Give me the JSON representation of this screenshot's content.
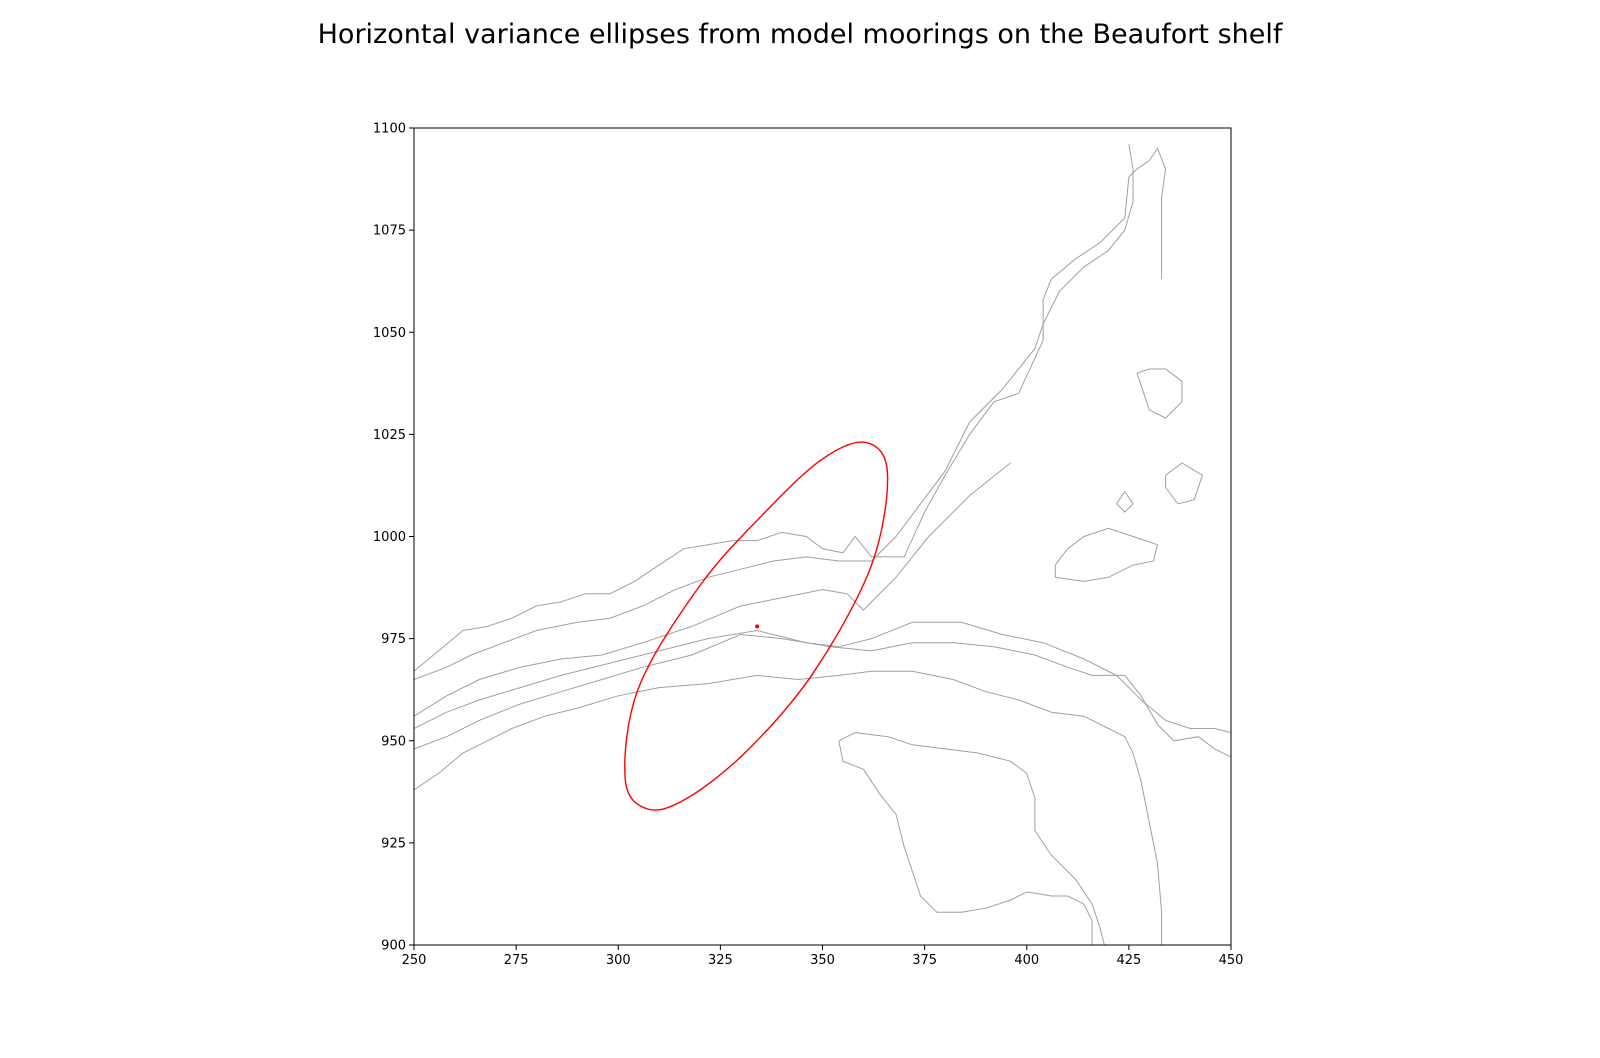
{
  "chart_data": {
    "type": "scatter",
    "title": "Horizontal variance ellipses from model moorings on the Beaufort shelf",
    "xlabel": "",
    "ylabel": "",
    "xlim": [
      250,
      450
    ],
    "ylim": [
      900,
      1100
    ],
    "xticks": [
      250,
      275,
      300,
      325,
      350,
      375,
      400,
      425,
      450
    ],
    "yticks": [
      900,
      925,
      950,
      975,
      1000,
      1025,
      1050,
      1075,
      1100
    ],
    "grid": false,
    "legend": "none",
    "colors": {
      "ellipse": "#ff0000",
      "contour": "#a0a0a0",
      "axis": "#000000"
    },
    "mooring": {
      "x": 334,
      "y": 978
    },
    "variance_ellipse": {
      "center": [
        334,
        978
      ],
      "vertices_data": [
        [
          307.2,
          933.3
        ],
        [
          301.7,
          940.7
        ],
        [
          305.0,
          963.0
        ],
        [
          320.0,
          988.0
        ],
        [
          336.0,
          1006.0
        ],
        [
          350.0,
          1019.0
        ],
        [
          360.7,
          1023.0
        ],
        [
          365.9,
          1015.4
        ],
        [
          362.0,
          993.0
        ],
        [
          348.0,
          967.0
        ],
        [
          332.0,
          948.0
        ],
        [
          317.0,
          936.0
        ]
      ]
    },
    "bathymetry_contours": [
      [
        [
          250,
          967
        ],
        [
          256,
          972
        ],
        [
          262,
          977
        ],
        [
          268,
          978
        ],
        [
          274,
          980
        ],
        [
          280,
          983
        ],
        [
          286,
          984
        ],
        [
          292,
          986
        ],
        [
          298,
          986
        ],
        [
          304,
          989
        ],
        [
          310,
          993
        ],
        [
          316,
          997
        ],
        [
          322,
          998
        ],
        [
          328,
          999
        ],
        [
          334,
          999
        ],
        [
          340,
          1001
        ],
        [
          346,
          1000
        ],
        [
          350,
          997
        ],
        [
          355,
          996
        ],
        [
          358,
          1000
        ],
        [
          362,
          995
        ],
        [
          370,
          995
        ],
        [
          375,
          1006
        ],
        [
          380,
          1015
        ],
        [
          386,
          1025
        ],
        [
          392,
          1033
        ],
        [
          398,
          1035
        ],
        [
          404,
          1048
        ],
        [
          404,
          1058
        ],
        [
          406,
          1063
        ],
        [
          412,
          1068
        ],
        [
          418,
          1072
        ],
        [
          424,
          1078
        ],
        [
          425,
          1088
        ],
        [
          427,
          1090
        ],
        [
          430,
          1092
        ],
        [
          432,
          1095
        ],
        [
          434,
          1090
        ],
        [
          433,
          1083
        ],
        [
          433,
          1072
        ],
        [
          433,
          1063
        ]
      ],
      [
        [
          250,
          965
        ],
        [
          258,
          968
        ],
        [
          264,
          971
        ],
        [
          272,
          974
        ],
        [
          280,
          977
        ],
        [
          290,
          979
        ],
        [
          298,
          980
        ],
        [
          306,
          983
        ],
        [
          314,
          987
        ],
        [
          322,
          990
        ],
        [
          330,
          992
        ],
        [
          338,
          994
        ],
        [
          346,
          995
        ],
        [
          354,
          994
        ],
        [
          362,
          994
        ],
        [
          368,
          1000
        ],
        [
          374,
          1008
        ],
        [
          380,
          1016
        ],
        [
          386,
          1028
        ],
        [
          394,
          1036
        ],
        [
          402,
          1046
        ],
        [
          404,
          1052
        ],
        [
          408,
          1060
        ],
        [
          414,
          1066
        ],
        [
          420,
          1070
        ],
        [
          424,
          1075
        ],
        [
          426,
          1082
        ],
        [
          426,
          1090
        ],
        [
          425,
          1096
        ]
      ],
      [
        [
          250,
          956
        ],
        [
          258,
          961
        ],
        [
          266,
          965
        ],
        [
          276,
          968
        ],
        [
          286,
          970
        ],
        [
          296,
          971
        ],
        [
          306,
          974
        ],
        [
          318,
          978
        ],
        [
          330,
          983
        ],
        [
          340,
          985
        ],
        [
          350,
          987
        ],
        [
          356,
          986
        ],
        [
          360,
          982
        ],
        [
          368,
          990
        ],
        [
          376,
          1000
        ],
        [
          386,
          1010
        ],
        [
          396,
          1018
        ]
      ],
      [
        [
          250,
          953
        ],
        [
          258,
          957
        ],
        [
          266,
          960
        ],
        [
          276,
          963
        ],
        [
          286,
          966
        ],
        [
          298,
          969
        ],
        [
          310,
          972
        ],
        [
          322,
          975
        ],
        [
          334,
          977
        ],
        [
          346,
          974
        ],
        [
          354,
          973
        ],
        [
          362,
          975
        ],
        [
          372,
          979
        ],
        [
          384,
          979
        ],
        [
          394,
          976
        ],
        [
          404,
          974
        ],
        [
          414,
          970
        ],
        [
          422,
          966
        ],
        [
          428,
          960
        ],
        [
          434,
          955
        ],
        [
          440,
          953
        ],
        [
          446,
          953
        ],
        [
          450,
          952
        ]
      ],
      [
        [
          250,
          948
        ],
        [
          258,
          951
        ],
        [
          266,
          955
        ],
        [
          276,
          959
        ],
        [
          286,
          962
        ],
        [
          296,
          965
        ],
        [
          306,
          968
        ],
        [
          318,
          971
        ],
        [
          330,
          976
        ],
        [
          340,
          975
        ],
        [
          352,
          973
        ],
        [
          362,
          972
        ],
        [
          372,
          974
        ],
        [
          382,
          974
        ],
        [
          392,
          973
        ],
        [
          402,
          971
        ],
        [
          410,
          968
        ],
        [
          416,
          966
        ],
        [
          424,
          966
        ],
        [
          428,
          961
        ],
        [
          432,
          954
        ],
        [
          436,
          950
        ],
        [
          442,
          951
        ],
        [
          446,
          948
        ],
        [
          450,
          946
        ]
      ],
      [
        [
          250,
          938
        ],
        [
          256,
          942
        ],
        [
          262,
          947
        ],
        [
          268,
          950
        ],
        [
          274,
          953
        ],
        [
          282,
          956
        ],
        [
          290,
          958
        ],
        [
          300,
          961
        ],
        [
          310,
          963
        ],
        [
          322,
          964
        ],
        [
          334,
          966
        ],
        [
          344,
          965
        ],
        [
          354,
          966
        ],
        [
          362,
          967
        ],
        [
          372,
          967
        ],
        [
          382,
          965
        ],
        [
          390,
          962
        ],
        [
          398,
          960
        ],
        [
          406,
          957
        ],
        [
          414,
          956
        ],
        [
          420,
          953
        ],
        [
          424,
          951
        ],
        [
          426,
          947
        ],
        [
          428,
          940
        ],
        [
          430,
          930
        ],
        [
          432,
          920
        ],
        [
          433,
          908
        ],
        [
          433,
          900
        ]
      ],
      [
        [
          354,
          950
        ],
        [
          358,
          952
        ],
        [
          366,
          951
        ],
        [
          372,
          949
        ],
        [
          380,
          948
        ],
        [
          388,
          947
        ],
        [
          396,
          945
        ],
        [
          400,
          942
        ],
        [
          402,
          936
        ],
        [
          402,
          928
        ],
        [
          406,
          922
        ],
        [
          412,
          916
        ],
        [
          416,
          910
        ],
        [
          418,
          904
        ],
        [
          419,
          900
        ]
      ],
      [
        [
          354,
          950
        ],
        [
          355,
          945
        ],
        [
          360,
          943
        ],
        [
          364,
          937
        ],
        [
          368,
          932
        ],
        [
          370,
          924
        ],
        [
          372,
          918
        ],
        [
          374,
          912
        ],
        [
          378,
          908
        ],
        [
          384,
          908
        ],
        [
          390,
          909
        ],
        [
          396,
          911
        ],
        [
          400,
          913
        ],
        [
          406,
          912
        ],
        [
          410,
          912
        ],
        [
          414,
          910
        ],
        [
          416,
          906
        ],
        [
          416,
          900
        ]
      ],
      [
        [
          407,
          993
        ],
        [
          410,
          997
        ],
        [
          414,
          1000
        ],
        [
          420,
          1002
        ],
        [
          426,
          1000
        ],
        [
          432,
          998
        ],
        [
          431,
          994
        ],
        [
          426,
          993
        ],
        [
          420,
          990
        ],
        [
          414,
          989
        ],
        [
          407,
          990
        ],
        [
          407,
          993
        ]
      ],
      [
        [
          427,
          1040
        ],
        [
          430,
          1031
        ],
        [
          434,
          1029
        ],
        [
          438,
          1033
        ],
        [
          438,
          1038
        ],
        [
          434,
          1041
        ],
        [
          430,
          1041
        ],
        [
          427,
          1040
        ]
      ],
      [
        [
          434,
          1012
        ],
        [
          437,
          1008
        ],
        [
          441,
          1009
        ],
        [
          443,
          1015
        ],
        [
          438,
          1018
        ],
        [
          434,
          1015
        ],
        [
          434,
          1012
        ]
      ],
      [
        [
          422,
          1008
        ],
        [
          424,
          1011
        ],
        [
          426,
          1008
        ],
        [
          424,
          1006
        ],
        [
          422,
          1008
        ]
      ]
    ]
  }
}
